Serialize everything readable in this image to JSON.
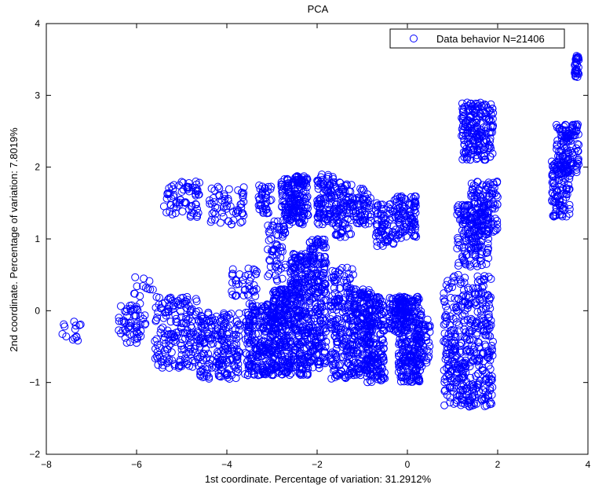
{
  "chart_data": {
    "type": "scatter",
    "title": "PCA",
    "xlabel": "1st coordinate. Percentage of variation: 31.2912%",
    "ylabel": "2nd coordinate. Percentage of variation: 7.8019%",
    "xlim": [
      -8,
      4
    ],
    "ylim": [
      -2,
      4
    ],
    "x_ticks": [
      "-8",
      "-6",
      "-4",
      "-2",
      "0",
      "2",
      "4"
    ],
    "y_ticks": [
      "-2",
      "-1",
      "0",
      "1",
      "2",
      "3",
      "4"
    ],
    "grid": false,
    "legend_position": "top-right",
    "marker": "open-circle",
    "color": "#0000ff",
    "series": [
      {
        "name": "Data behavior N=21406",
        "note_points_are_representative_sample": true,
        "clusters": [
          {
            "x": [
              -7.7,
              -7.2
            ],
            "y": [
              -0.48,
              -0.15
            ],
            "n": 14
          },
          {
            "x": [
              -6.4,
              -5.8
            ],
            "y": [
              -0.45,
              0.1
            ],
            "n": 60
          },
          {
            "x": [
              -6.1,
              -5.6
            ],
            "y": [
              0.2,
              0.5
            ],
            "n": 12
          },
          {
            "x": [
              -5.6,
              -4.6
            ],
            "y": [
              -0.8,
              0.2
            ],
            "n": 180
          },
          {
            "x": [
              -5.4,
              -4.6
            ],
            "y": [
              1.3,
              1.8
            ],
            "n": 70
          },
          {
            "x": [
              -4.6,
              -3.7
            ],
            "y": [
              -0.95,
              0.0
            ],
            "n": 200
          },
          {
            "x": [
              -4.4,
              -3.6
            ],
            "y": [
              1.2,
              1.75
            ],
            "n": 60
          },
          {
            "x": [
              -3.9,
              -3.3
            ],
            "y": [
              0.2,
              0.6
            ],
            "n": 40
          },
          {
            "x": [
              -3.6,
              -3.0
            ],
            "y": [
              -0.9,
              0.1
            ],
            "n": 220
          },
          {
            "x": [
              -3.3,
              -3.0
            ],
            "y": [
              1.35,
              1.75
            ],
            "n": 40
          },
          {
            "x": [
              -3.1,
              -2.7
            ],
            "y": [
              0.4,
              1.3
            ],
            "n": 60
          },
          {
            "x": [
              -3.0,
              -2.6
            ],
            "y": [
              -0.9,
              0.3
            ],
            "n": 240
          },
          {
            "x": [
              -2.8,
              -2.5
            ],
            "y": [
              1.2,
              1.85
            ],
            "n": 90
          },
          {
            "x": [
              -2.6,
              -2.2
            ],
            "y": [
              -0.9,
              0.8
            ],
            "n": 260
          },
          {
            "x": [
              -2.5,
              -2.2
            ],
            "y": [
              1.2,
              1.9
            ],
            "n": 100
          },
          {
            "x": [
              -2.2,
              -1.8
            ],
            "y": [
              -0.8,
              1.0
            ],
            "n": 240
          },
          {
            "x": [
              -2.0,
              -1.6
            ],
            "y": [
              1.2,
              1.9
            ],
            "n": 100
          },
          {
            "x": [
              -1.7,
              -1.2
            ],
            "y": [
              -0.95,
              0.6
            ],
            "n": 200
          },
          {
            "x": [
              -1.6,
              -1.2
            ],
            "y": [
              1.0,
              1.8
            ],
            "n": 90
          },
          {
            "x": [
              -1.2,
              -0.8
            ],
            "y": [
              -0.9,
              0.3
            ],
            "n": 180
          },
          {
            "x": [
              -1.2,
              -0.8
            ],
            "y": [
              1.2,
              1.7
            ],
            "n": 60
          },
          {
            "x": [
              -0.9,
              -0.5
            ],
            "y": [
              -1.0,
              0.2
            ],
            "n": 180
          },
          {
            "x": [
              -0.7,
              -0.3
            ],
            "y": [
              0.9,
              1.5
            ],
            "n": 70
          },
          {
            "x": [
              -0.4,
              0.0
            ],
            "y": [
              -0.3,
              0.2
            ],
            "n": 90
          },
          {
            "x": [
              -0.3,
              0.2
            ],
            "y": [
              1.0,
              1.6
            ],
            "n": 100
          },
          {
            "x": [
              -0.2,
              0.3
            ],
            "y": [
              -1.0,
              0.2
            ],
            "n": 260
          },
          {
            "x": [
              0.2,
              0.5
            ],
            "y": [
              -0.8,
              0.0
            ],
            "n": 60
          },
          {
            "x": [
              0.8,
              1.9
            ],
            "y": [
              -1.35,
              0.5
            ],
            "n": 420
          },
          {
            "x": [
              1.1,
              1.8
            ],
            "y": [
              0.6,
              1.5
            ],
            "n": 170
          },
          {
            "x": [
              1.2,
              1.9
            ],
            "y": [
              2.1,
              2.9
            ],
            "n": 200
          },
          {
            "x": [
              1.4,
              2.0
            ],
            "y": [
              1.1,
              1.8
            ],
            "n": 110
          },
          {
            "x": [
              3.2,
              3.6
            ],
            "y": [
              1.3,
              2.1
            ],
            "n": 100
          },
          {
            "x": [
              3.3,
              3.8
            ],
            "y": [
              1.9,
              2.6
            ],
            "n": 130
          },
          {
            "x": [
              3.7,
              3.8
            ],
            "y": [
              3.25,
              3.55
            ],
            "n": 30
          }
        ]
      }
    ]
  }
}
